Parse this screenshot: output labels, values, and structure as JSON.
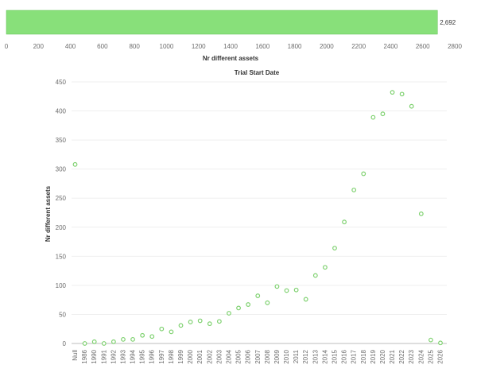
{
  "colors": {
    "bar_fill": "#88e07a",
    "bar_stroke": "#5fbf52",
    "point_stroke": "#7ed16f"
  },
  "chart_data": [
    {
      "type": "bar",
      "orientation": "horizontal",
      "categories": [
        ""
      ],
      "values": [
        2692
      ],
      "value_label": "2,692",
      "xlabel": "Nr different assets",
      "xlim": [
        0,
        2800
      ],
      "xticks": [
        0,
        200,
        400,
        600,
        800,
        1000,
        1200,
        1400,
        1600,
        1800,
        2000,
        2200,
        2400,
        2600,
        2800
      ]
    },
    {
      "type": "scatter",
      "title": "Trial Start Date",
      "ylabel": "Nr different assets",
      "ylim": [
        0,
        450
      ],
      "yticks": [
        0,
        50,
        100,
        150,
        200,
        250,
        300,
        350,
        400,
        450
      ],
      "grid": true,
      "categories": [
        "Null",
        "1986",
        "1990",
        "1991",
        "1992",
        "1993",
        "1994",
        "1995",
        "1996",
        "1997",
        "1998",
        "1999",
        "2000",
        "2001",
        "2002",
        "2003",
        "2004",
        "2005",
        "2006",
        "2007",
        "2008",
        "2009",
        "2010",
        "2011",
        "2012",
        "2013",
        "2014",
        "2015",
        "2016",
        "2017",
        "2018",
        "2019",
        "2020",
        "2021",
        "2022",
        "2023",
        "2024",
        "2025",
        "2026"
      ],
      "values": [
        308,
        0,
        3,
        0,
        3,
        7,
        7,
        14,
        12,
        25,
        20,
        31,
        37,
        39,
        34,
        38,
        52,
        61,
        67,
        82,
        70,
        98,
        91,
        92,
        76,
        117,
        131,
        164,
        209,
        264,
        292,
        389,
        395,
        432,
        429,
        408,
        223,
        6,
        1
      ]
    }
  ]
}
